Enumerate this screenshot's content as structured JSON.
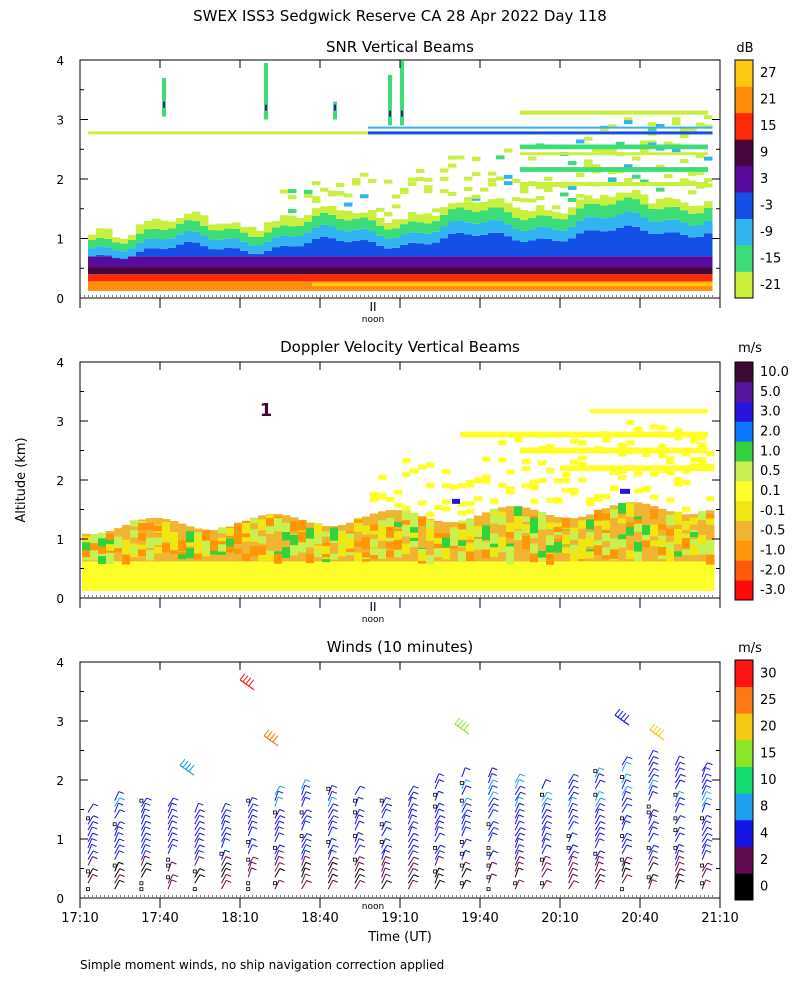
{
  "page": {
    "title": "SWEX ISS3 Sedgwick Reserve CA  28 Apr 2022 Day 118",
    "footnote": "Simple moment winds, no ship navigation correction applied",
    "ylabel": "Altitude (km)",
    "xlabel": "Time (UT)",
    "noon_label": "noon",
    "noon_symbol": "II"
  },
  "chart_data": [
    {
      "type": "heatmap",
      "title": "SNR Vertical Beams",
      "ylim": [
        0,
        4
      ],
      "yticks": [
        "0",
        "1",
        "2",
        "3",
        "4"
      ],
      "x_time_range": [
        "17:10",
        "21:10"
      ],
      "colorbar": {
        "unit": "dB",
        "labels": [
          "-21",
          "-15",
          "-9",
          "-3",
          "3",
          "9",
          "15",
          "21",
          "27"
        ],
        "colors": [
          "#c8f03c",
          "#3cdc78",
          "#32b4f0",
          "#1450e6",
          "#5a0a9c",
          "#46083c",
          "#ff2a0a",
          "#ff8c0a",
          "#ffc814"
        ]
      }
    },
    {
      "type": "heatmap",
      "title": "Doppler Velocity Vertical Beams",
      "ylim": [
        0,
        4
      ],
      "yticks": [
        "0",
        "1",
        "2",
        "3",
        "4"
      ],
      "x_time_range": [
        "17:10",
        "21:10"
      ],
      "annotations": [
        "1"
      ],
      "colorbar": {
        "unit": "m/s",
        "labels": [
          "-3.0",
          "-2.0",
          "-1.0",
          "-0.5",
          "-0.1",
          "0.1",
          "0.5",
          "1.0",
          "2.0",
          "3.0",
          "5.0",
          "10.0"
        ],
        "colors": [
          "#ff0a0a",
          "#ff5a0a",
          "#ff960a",
          "#f0b432",
          "#f0e614",
          "#ffff28",
          "#c8f050",
          "#32d23c",
          "#0a78ff",
          "#2814dc",
          "#5a14a0",
          "#3c0a32"
        ]
      }
    },
    {
      "type": "scatter",
      "title": "Winds (10 minutes)",
      "ylim": [
        0,
        4
      ],
      "yticks": [
        "0",
        "1",
        "2",
        "3",
        "4"
      ],
      "xlabel": "Time (UT)",
      "xticks": [
        "17:10",
        "17:40",
        "18:10",
        "18:40",
        "19:10",
        "19:40",
        "20:10",
        "20:40",
        "21:10"
      ],
      "colorbar": {
        "unit": "m/s",
        "labels": [
          "0",
          "2",
          "4",
          "8",
          "10",
          "15",
          "20",
          "25",
          "30"
        ],
        "colors": [
          "#000000",
          "#640a50",
          "#1414e6",
          "#1ea0f0",
          "#14dc6e",
          "#8ce628",
          "#f5c814",
          "#ff7814",
          "#ff1414"
        ]
      }
    }
  ]
}
